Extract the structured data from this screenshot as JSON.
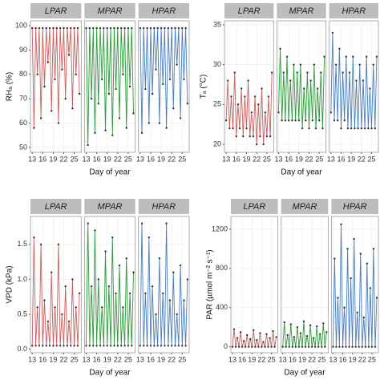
{
  "chart_data": [
    {
      "type": "line",
      "ylabel": "RHₐ (%)",
      "xlabel": "Day of year",
      "x": [
        13,
        13.5,
        14,
        14.5,
        15,
        15.5,
        16,
        16.5,
        17,
        17.5,
        18,
        18.5,
        19,
        19.5,
        20,
        20.5,
        21,
        21.5,
        22,
        22.5,
        23,
        23.5,
        24,
        24.5,
        25,
        25.5,
        26,
        26.5
      ],
      "xlim": [
        12.5,
        27
      ],
      "xticks": [
        13,
        16,
        19,
        22,
        25
      ],
      "ylim": [
        48,
        102
      ],
      "yticks": [
        50,
        60,
        70,
        80,
        90,
        100
      ],
      "series": [
        {
          "name": "LPAR",
          "color": "#c8605e",
          "values": [
            99,
            58,
            99,
            80,
            99,
            62,
            99,
            75,
            99,
            85,
            99,
            65,
            99,
            78,
            99,
            60,
            99,
            82,
            99,
            70,
            99,
            88,
            99,
            66,
            99,
            80,
            99,
            72
          ]
        },
        {
          "name": "MPAR",
          "color": "#2e9a3a",
          "values": [
            99,
            51,
            99,
            70,
            99,
            56,
            99,
            68,
            99,
            78,
            99,
            57,
            99,
            72,
            99,
            55,
            99,
            74,
            99,
            62,
            99,
            80,
            99,
            58,
            99,
            75,
            99,
            64
          ]
        },
        {
          "name": "HPAR",
          "color": "#4a7ebb",
          "values": [
            99,
            56,
            99,
            74,
            99,
            60,
            99,
            72,
            99,
            82,
            99,
            60,
            99,
            76,
            99,
            58,
            99,
            78,
            99,
            66,
            99,
            84,
            99,
            62,
            99,
            78,
            99,
            68
          ]
        }
      ]
    },
    {
      "type": "line",
      "ylabel": "Tₐ (°C)",
      "xlabel": "Day of year",
      "x": [
        13,
        13.5,
        14,
        14.5,
        15,
        15.5,
        16,
        16.5,
        17,
        17.5,
        18,
        18.5,
        19,
        19.5,
        20,
        20.5,
        21,
        21.5,
        22,
        22.5,
        23,
        23.5,
        24,
        24.5,
        25,
        25.5,
        26,
        26.5
      ],
      "xlim": [
        12.5,
        27
      ],
      "xticks": [
        13,
        16,
        19,
        22,
        25
      ],
      "ylim": [
        19,
        35.5
      ],
      "yticks": [
        20,
        25,
        30,
        35
      ],
      "series": [
        {
          "name": "LPAR",
          "color": "#c8605e",
          "values": [
            23,
            28,
            22,
            26,
            22,
            29,
            21,
            25,
            22,
            27,
            21,
            26,
            22,
            28,
            21,
            24,
            21,
            26,
            20,
            25,
            21,
            27,
            20,
            24,
            21,
            26,
            21,
            29
          ]
        },
        {
          "name": "MPAR",
          "color": "#2e9a3a",
          "values": [
            24,
            32,
            23,
            29,
            23,
            31,
            23,
            28,
            23,
            30,
            23,
            29,
            23,
            30,
            22,
            27,
            23,
            29,
            22,
            28,
            23,
            30,
            22,
            27,
            23,
            29,
            22,
            31
          ]
        },
        {
          "name": "HPAR",
          "color": "#4a7ebb",
          "values": [
            24,
            34,
            23,
            30,
            23,
            32,
            22,
            29,
            23,
            31,
            22,
            29,
            22,
            31,
            22,
            28,
            22,
            30,
            22,
            28,
            22,
            31,
            22,
            27,
            22,
            30,
            22,
            31
          ]
        }
      ]
    },
    {
      "type": "line",
      "ylabel": "VPD (kPa)",
      "xlabel": "Day of year",
      "x": [
        13,
        13.5,
        14,
        14.5,
        15,
        15.5,
        16,
        16.5,
        17,
        17.5,
        18,
        18.5,
        19,
        19.5,
        20,
        20.5,
        21,
        21.5,
        22,
        22.5,
        23,
        23.5,
        24,
        24.5,
        25,
        25.5,
        26,
        26.5
      ],
      "xlim": [
        12.5,
        27
      ],
      "xticks": [
        13,
        16,
        19,
        22,
        25
      ],
      "ylim": [
        -0.05,
        1.9
      ],
      "yticks": [
        {
          "value": 0,
          "label": "0.0"
        },
        {
          "value": 0.5,
          "label": "0.5"
        },
        {
          "value": 1,
          "label": "1.0"
        },
        {
          "value": 1.5,
          "label": "1.5"
        }
      ],
      "series": [
        {
          "name": "LPAR",
          "color": "#c8605e",
          "values": [
            0.05,
            1.6,
            0.05,
            0.6,
            0.05,
            1.5,
            0.05,
            0.7,
            0.05,
            0.4,
            0.05,
            1.1,
            0.05,
            0.6,
            0.05,
            1.5,
            0.05,
            0.5,
            0.05,
            0.9,
            0.05,
            0.4,
            0.05,
            1.0,
            0.05,
            0.6,
            0.05,
            0.8
          ]
        },
        {
          "name": "MPAR",
          "color": "#2e9a3a",
          "values": [
            0.05,
            1.8,
            0.05,
            0.9,
            0.05,
            1.7,
            0.05,
            1.0,
            0.05,
            0.6,
            0.05,
            1.4,
            0.05,
            0.9,
            0.05,
            1.6,
            0.05,
            0.8,
            0.05,
            1.2,
            0.05,
            0.6,
            0.05,
            1.3,
            0.05,
            0.8,
            0.05,
            1.1
          ]
        },
        {
          "name": "HPAR",
          "color": "#4a7ebb",
          "values": [
            0.05,
            1.8,
            0.05,
            0.8,
            0.05,
            1.6,
            0.05,
            0.9,
            0.05,
            0.5,
            0.05,
            1.3,
            0.05,
            0.8,
            0.05,
            1.8,
            0.05,
            0.7,
            0.05,
            1.1,
            0.05,
            0.5,
            0.05,
            1.2,
            0.05,
            0.7,
            0.05,
            1.0
          ]
        }
      ]
    },
    {
      "type": "line",
      "ylabel": "PAR (µmol m⁻² s⁻¹)",
      "xlabel": "Day of year",
      "x": [
        13,
        13.5,
        14,
        14.5,
        15,
        15.5,
        16,
        16.5,
        17,
        17.5,
        18,
        18.5,
        19,
        19.5,
        20,
        20.5,
        21,
        21.5,
        22,
        22.5,
        23,
        23.5,
        24,
        24.5,
        25,
        25.5,
        26,
        26.5
      ],
      "xlim": [
        12.5,
        27
      ],
      "xticks": [
        13,
        16,
        19,
        22,
        25
      ],
      "ylim": [
        -60,
        1330
      ],
      "yticks": [
        0,
        400,
        800,
        1200
      ],
      "series": [
        {
          "name": "LPAR",
          "color": "#c8605e",
          "values": [
            0,
            180,
            0,
            90,
            0,
            150,
            0,
            60,
            0,
            120,
            0,
            80,
            0,
            170,
            0,
            70,
            0,
            140,
            0,
            50,
            0,
            130,
            0,
            90,
            0,
            160,
            0,
            100
          ]
        },
        {
          "name": "MPAR",
          "color": "#2e9a3a",
          "values": [
            0,
            250,
            0,
            120,
            0,
            230,
            0,
            100,
            0,
            200,
            0,
            140,
            0,
            260,
            0,
            110,
            0,
            220,
            0,
            90,
            0,
            210,
            0,
            130,
            0,
            240,
            0,
            150
          ]
        },
        {
          "name": "HPAR",
          "color": "#4a7ebb",
          "values": [
            0,
            900,
            0,
            500,
            0,
            1250,
            0,
            400,
            0,
            1000,
            0,
            700,
            0,
            1100,
            0,
            350,
            0,
            950,
            0,
            300,
            0,
            850,
            0,
            600,
            0,
            1000,
            0,
            500
          ]
        }
      ]
    }
  ]
}
